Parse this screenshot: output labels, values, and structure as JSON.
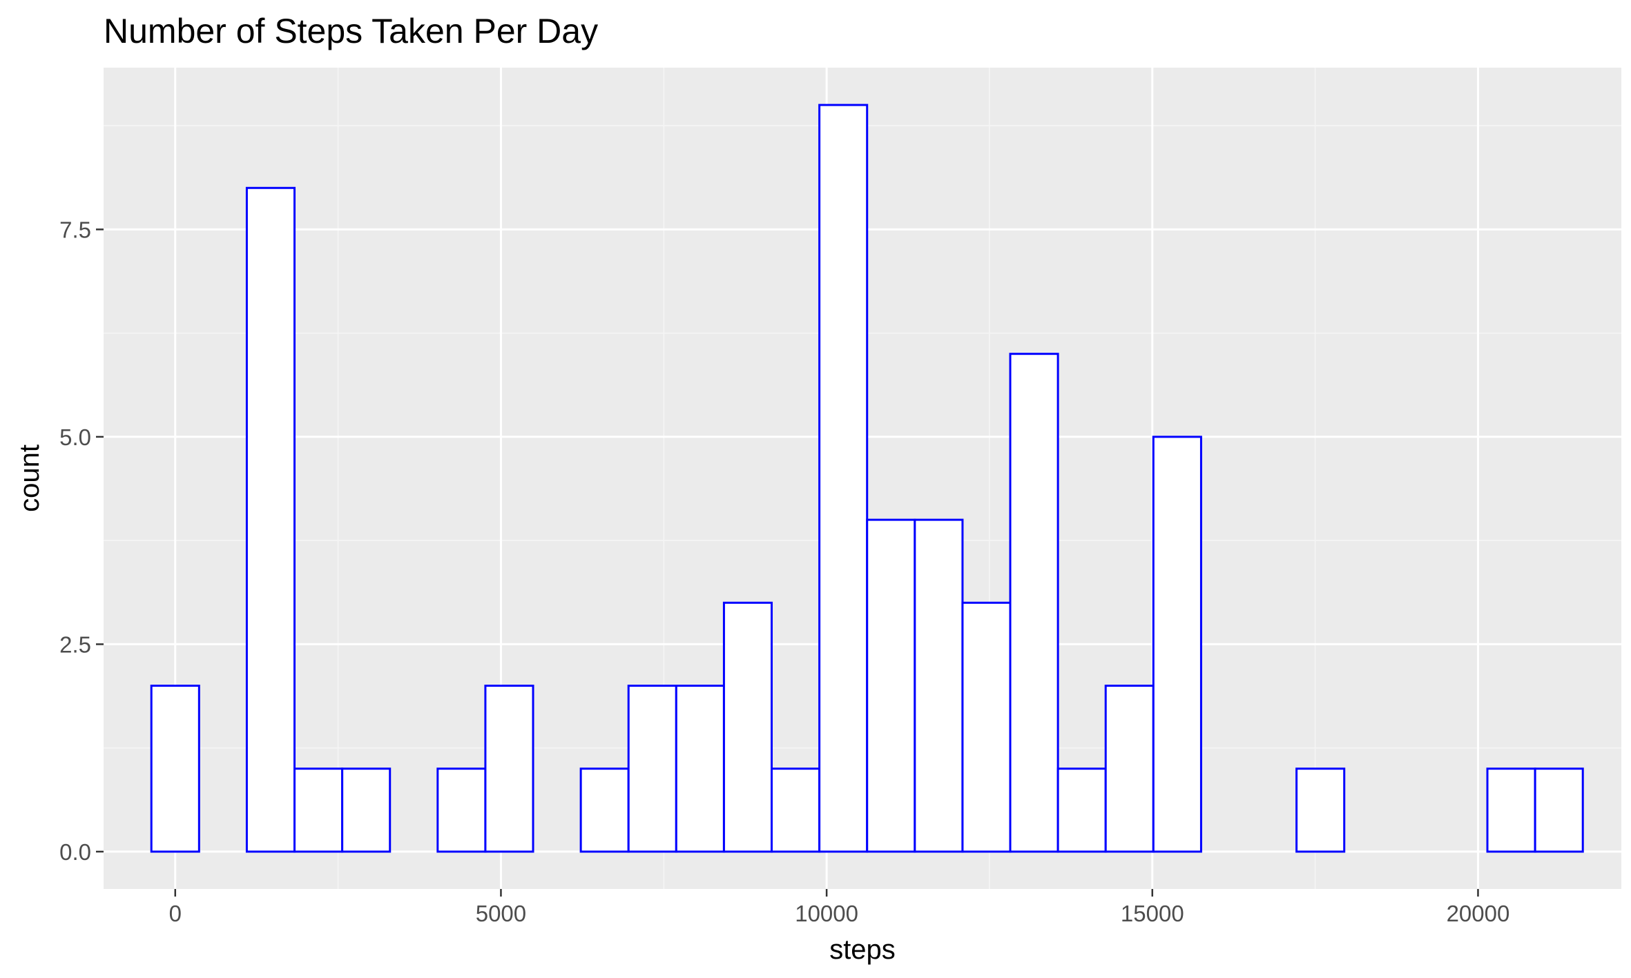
{
  "chart_data": {
    "type": "bar",
    "title": "Number of Steps Taken Per Day",
    "xlabel": "steps",
    "ylabel": "count",
    "xlim": [
      -1100,
      22200
    ],
    "ylim": [
      -0.45,
      9.45
    ],
    "bin_width": 732.5,
    "x": [
      0,
      732.5,
      1465,
      2197.5,
      2930,
      3662.5,
      4395,
      5127.5,
      5860,
      6592.5,
      7325,
      8057.5,
      8790,
      9522.5,
      10255,
      10987.5,
      11720,
      12452.5,
      13185,
      13917.5,
      14650,
      15382.5,
      16115,
      16847.5,
      17580,
      18312.5,
      19045,
      19777.5,
      20510,
      21242.5
    ],
    "values": [
      2,
      0,
      8,
      1,
      1,
      0,
      1,
      2,
      0,
      1,
      2,
      2,
      3,
      1,
      9,
      4,
      4,
      3,
      6,
      1,
      2,
      5,
      0,
      0,
      1,
      0,
      0,
      0,
      1,
      1
    ],
    "x_ticks": [
      0,
      5000,
      10000,
      15000,
      20000
    ],
    "x_tick_labels": [
      "0",
      "5000",
      "10000",
      "15000",
      "20000"
    ],
    "y_ticks": [
      0,
      2.5,
      5,
      7.5
    ],
    "y_tick_labels": [
      "0.0",
      "2.5",
      "5.0",
      "7.5"
    ],
    "grid": true,
    "colors": {
      "panel_background": "#ebebeb",
      "grid_major": "#ffffff",
      "grid_minor": "#f5f5f5",
      "bar_fill": "#ffffff",
      "bar_outline": "#0000ff",
      "tick_mark": "#333333"
    }
  }
}
